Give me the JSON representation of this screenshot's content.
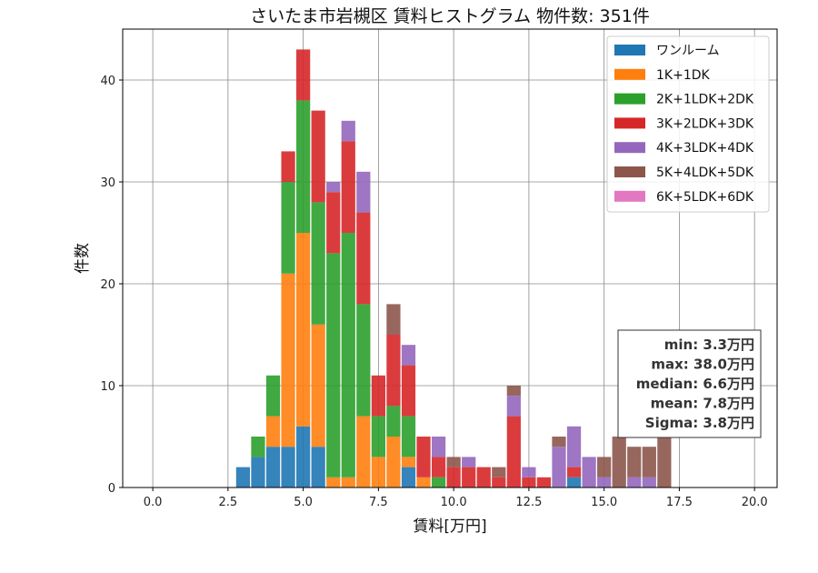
{
  "chart_data": {
    "type": "bar",
    "stacked": true,
    "title": "さいたま市岩槻区 賃料ヒストグラム  物件数: 351件",
    "xlabel": "賃料[万円]",
    "ylabel": "件数",
    "xlim": [
      -1.0,
      20.75
    ],
    "ylim": [
      0,
      45
    ],
    "xticks": [
      0.0,
      2.5,
      5.0,
      7.5,
      10.0,
      12.5,
      15.0,
      17.5,
      20.0
    ],
    "xtick_labels": [
      "0.0",
      "2.5",
      "5.0",
      "7.5",
      "10.0",
      "12.5",
      "15.0",
      "17.5",
      "20.0"
    ],
    "yticks": [
      0,
      10,
      20,
      30,
      40
    ],
    "ytick_labels": [
      "0",
      "10",
      "20",
      "30",
      "40"
    ],
    "grid": true,
    "legend_position": "top-right",
    "bin_width": 0.5,
    "x": [
      3.0,
      3.5,
      4.0,
      4.5,
      5.0,
      5.5,
      6.0,
      6.5,
      7.0,
      7.5,
      8.0,
      8.5,
      9.0,
      9.5,
      10.0,
      10.5,
      11.0,
      11.5,
      12.0,
      12.5,
      13.0,
      13.5,
      14.0,
      14.5,
      15.0,
      15.5,
      16.0,
      16.5,
      17.0
    ],
    "series": [
      {
        "name": "ワンルーム",
        "color": "#1f77b4",
        "values": [
          2,
          3,
          4,
          4,
          6,
          4,
          0,
          0,
          0,
          0,
          0,
          2,
          0,
          0,
          0,
          0,
          0,
          0,
          0,
          0,
          0,
          0,
          1,
          0,
          0,
          0,
          0,
          0,
          0
        ]
      },
      {
        "name": "1K+1DK",
        "color": "#ff7f0e",
        "values": [
          0,
          0,
          3,
          17,
          19,
          12,
          1,
          1,
          7,
          3,
          5,
          1,
          1,
          0,
          0,
          0,
          0,
          0,
          0,
          0,
          0,
          0,
          0,
          0,
          0,
          0,
          0,
          0,
          0
        ]
      },
      {
        "name": "2K+1LDK+2DK",
        "color": "#2ca02c",
        "values": [
          0,
          2,
          4,
          9,
          13,
          12,
          22,
          24,
          11,
          4,
          3,
          4,
          0,
          1,
          0,
          0,
          0,
          0,
          0,
          0,
          0,
          0,
          0,
          0,
          0,
          0,
          0,
          0,
          0
        ]
      },
      {
        "name": "3K+2LDK+3DK",
        "color": "#d62728",
        "values": [
          0,
          0,
          0,
          3,
          5,
          9,
          6,
          9,
          9,
          4,
          7,
          5,
          4,
          2,
          2,
          2,
          2,
          1,
          7,
          1,
          1,
          0,
          1,
          0,
          0,
          0,
          0,
          0,
          0
        ]
      },
      {
        "name": "4K+3LDK+4DK",
        "color": "#9467bd",
        "values": [
          0,
          0,
          0,
          0,
          0,
          0,
          1,
          2,
          4,
          0,
          0,
          2,
          0,
          2,
          0,
          1,
          0,
          0,
          2,
          1,
          0,
          4,
          4,
          3,
          1,
          0,
          1,
          1,
          0
        ]
      },
      {
        "name": "5K+4LDK+5DK",
        "color": "#8c564b",
        "values": [
          0,
          0,
          0,
          0,
          0,
          0,
          0,
          0,
          0,
          0,
          3,
          0,
          0,
          0,
          1,
          0,
          0,
          1,
          1,
          0,
          0,
          1,
          0,
          0,
          2,
          5,
          3,
          3,
          5
        ]
      },
      {
        "name": "6K+5LDK+6DK",
        "color": "#e377c2",
        "values": [
          0,
          0,
          0,
          0,
          0,
          0,
          0,
          0,
          0,
          0,
          0,
          0,
          0,
          0,
          0,
          0,
          0,
          0,
          0,
          0,
          0,
          0,
          0,
          0,
          0,
          0,
          0,
          0,
          0
        ]
      }
    ],
    "stats": {
      "min": "min: 3.3万円",
      "max": "max: 38.0万円",
      "median": "median: 6.6万円",
      "mean": "mean: 7.8万円",
      "sigma": "Sigma: 3.8万円"
    }
  }
}
